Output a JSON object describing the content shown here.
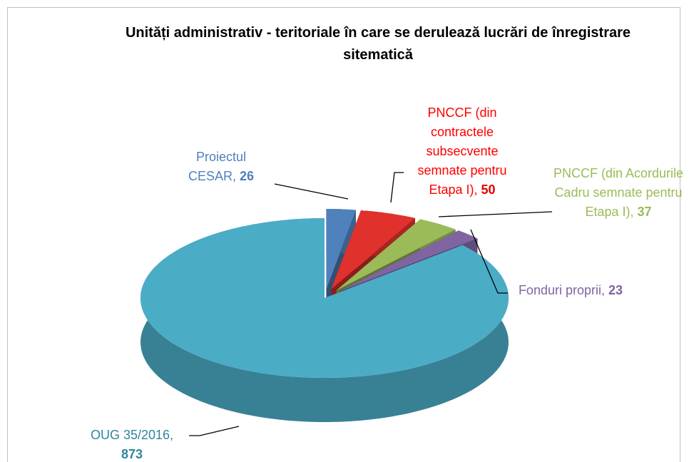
{
  "chart_data": {
    "type": "pie3d",
    "title": "Unități administrativ - teritoriale în care se derulează lucrări de înregistrare sitematică",
    "categories": [
      "Proiectul CESAR,",
      "PNCCF (din contractele subsecvente semnate pentru Etapa I),",
      "PNCCF (din Acordurile Cadru semnate pentru Etapa I),",
      "Fonduri proprii,",
      "OUG 35/2016,"
    ],
    "values": [
      26,
      50,
      37,
      23,
      873
    ],
    "colors": [
      "#4f81bd",
      "#e0312c",
      "#9bbb59",
      "#8064a2",
      "#4bacc6"
    ],
    "label_colors": [
      "#4f81bd",
      "#ff0000",
      "#9bbb59",
      "#8064a2",
      "#31859c"
    ],
    "value_label_colors": [
      "#4f81bd",
      "#e00000",
      "#9bbb59",
      "#8064a2",
      "#31859c"
    ]
  }
}
